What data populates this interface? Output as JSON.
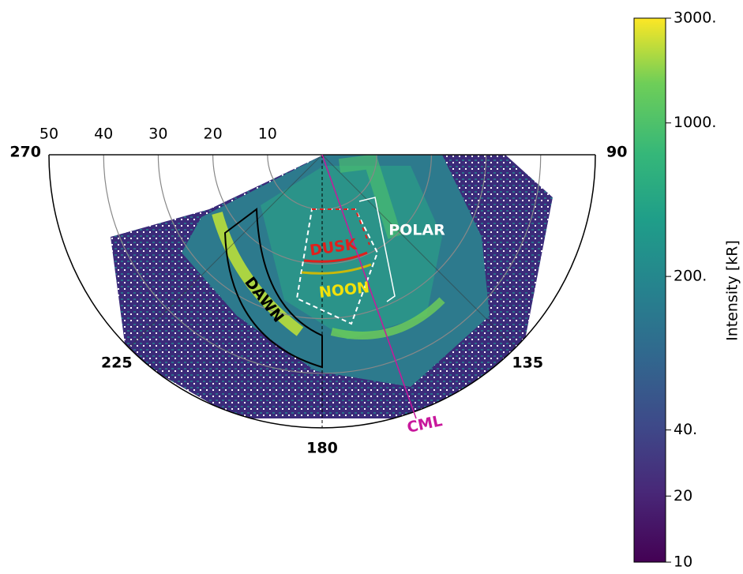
{
  "chart_data": {
    "type": "polar",
    "rlim": [
      0,
      50
    ],
    "rticks": [
      10,
      20,
      30,
      40,
      50
    ],
    "thetaticks": [
      270,
      225,
      180,
      135,
      90
    ],
    "colorbar": {
      "label": "Intensity [kR]",
      "log": true,
      "clim": [
        10,
        3000
      ],
      "ticks": [
        {
          "value": 3000,
          "label": "3000."
        },
        {
          "value": 1000,
          "label": "1000."
        },
        {
          "value": 200,
          "label": "200."
        },
        {
          "value": 40,
          "label": "40."
        },
        20,
        10
      ]
    },
    "annotations": [
      {
        "text": "DUSK",
        "color": "#e0201c"
      },
      {
        "text": "NOON",
        "color": "#f2e20a"
      },
      {
        "text": "POLAR",
        "color": "#ffffff"
      },
      {
        "text": "DAWN",
        "color": "#000000"
      },
      {
        "text": "CML",
        "color": "#c8189c"
      }
    ]
  }
}
